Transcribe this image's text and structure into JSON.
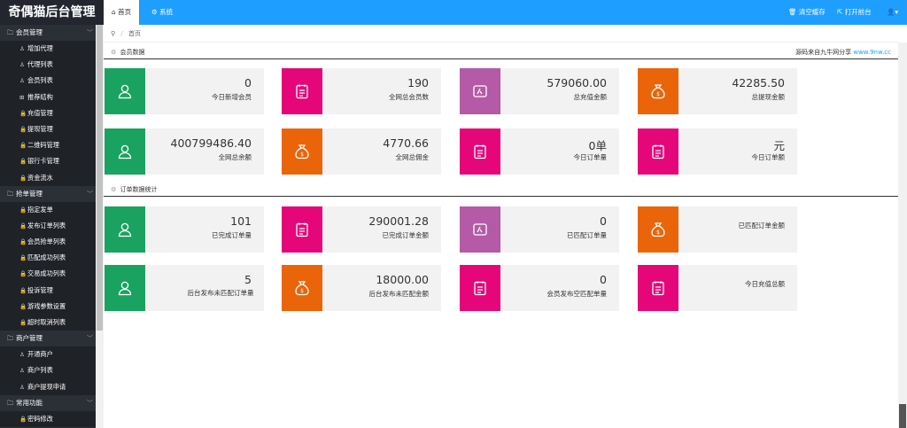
{
  "app": {
    "title": "奇偶猫后台管理"
  },
  "topbar": {
    "tabs": [
      {
        "label": "首页",
        "icon": "home-icon"
      },
      {
        "label": "系统",
        "icon": "gear-icon"
      }
    ],
    "clear_cache": "清空缓存",
    "open_front": "打开前台",
    "user_icon": "user-icon"
  },
  "breadcrumb": {
    "current": "首页"
  },
  "sidebar": {
    "groups": [
      {
        "label": "会员管理",
        "items": [
          {
            "label": "增加代理",
            "icon": "user-icon"
          },
          {
            "label": "代理列表",
            "icon": "user-icon"
          },
          {
            "label": "会员列表",
            "icon": "user-icon"
          },
          {
            "label": "推荐结构",
            "icon": "grid-icon"
          },
          {
            "label": "充值管理",
            "icon": "lock-icon"
          },
          {
            "label": "提现管理",
            "icon": "lock-icon"
          },
          {
            "label": "二维码管理",
            "icon": "lock-icon"
          },
          {
            "label": "银行卡管理",
            "icon": "lock-icon"
          },
          {
            "label": "资金流水",
            "icon": "lock-icon"
          }
        ]
      },
      {
        "label": "抢单管理",
        "items": [
          {
            "label": "指定发单",
            "icon": "lock-icon"
          },
          {
            "label": "发布订单列表",
            "icon": "lock-icon"
          },
          {
            "label": "会员抢单列表",
            "icon": "lock-icon"
          },
          {
            "label": "匹配成功列表",
            "icon": "lock-icon"
          },
          {
            "label": "交易成功列表",
            "icon": "lock-icon"
          },
          {
            "label": "投诉管理",
            "icon": "lock-icon"
          },
          {
            "label": "游戏参数设置",
            "icon": "lock-icon"
          },
          {
            "label": "超时取消列表",
            "icon": "lock-icon"
          }
        ]
      },
      {
        "label": "商户管理",
        "items": [
          {
            "label": "开通商户",
            "icon": "user-icon"
          },
          {
            "label": "商户列表",
            "icon": "user-icon"
          },
          {
            "label": "商户提现申请",
            "icon": "user-icon"
          }
        ]
      },
      {
        "label": "常用功能",
        "items": [
          {
            "label": "密码修改",
            "icon": "lock-icon"
          }
        ]
      }
    ]
  },
  "sections": {
    "members": {
      "title": "会员数据",
      "source_prefix": "源码来自九牛网分享 ",
      "source_link": "www.9nw.cc"
    },
    "orders": {
      "title": "订单数据统计"
    }
  },
  "member_cards": [
    {
      "value": "0",
      "label": "今日新增会员",
      "color": "#1aa260",
      "icon": "user-icon"
    },
    {
      "value": "190",
      "label": "全网总会员数",
      "color": "#e5067a",
      "icon": "clipboard-icon"
    },
    {
      "value": "579060.00",
      "label": "总充值金额",
      "color": "#b55aa6",
      "icon": "wallet-icon"
    },
    {
      "value": "42285.50",
      "label": "总提现金额",
      "color": "#ea650a",
      "icon": "money-bag-icon"
    },
    {
      "value": "400799486.40",
      "label": "全网总余额",
      "color": "#1aa260",
      "icon": "user-icon"
    },
    {
      "value": "4770.66",
      "label": "全网总佣金",
      "color": "#ea650a",
      "icon": "money-bag-icon"
    },
    {
      "value": "0单",
      "label": "今日订单量",
      "color": "#e5067a",
      "icon": "clipboard-icon"
    },
    {
      "value": "元",
      "label": "今日订单额",
      "color": "#e5067a",
      "icon": "clipboard-icon"
    }
  ],
  "order_cards": [
    {
      "value": "101",
      "label": "已完成订单量",
      "color": "#1aa260",
      "icon": "user-icon"
    },
    {
      "value": "290001.28",
      "label": "已完成订单金额",
      "color": "#e5067a",
      "icon": "clipboard-icon"
    },
    {
      "value": "0",
      "label": "已匹配订单量",
      "color": "#b55aa6",
      "icon": "wallet-icon"
    },
    {
      "value": "",
      "label": "已匹配订单金额",
      "color": "#ea650a",
      "icon": "money-bag-icon"
    },
    {
      "value": "5",
      "label": "后台发布未匹配订单量",
      "color": "#1aa260",
      "icon": "user-icon"
    },
    {
      "value": "18000.00",
      "label": "后台发布未匹配金额",
      "color": "#ea650a",
      "icon": "money-bag-icon"
    },
    {
      "value": "0",
      "label": "会员发布空匹配单量",
      "color": "#e5067a",
      "icon": "clipboard-icon"
    },
    {
      "value": "",
      "label": "今日充值总额",
      "color": "#e5067a",
      "icon": "clipboard-icon"
    }
  ]
}
